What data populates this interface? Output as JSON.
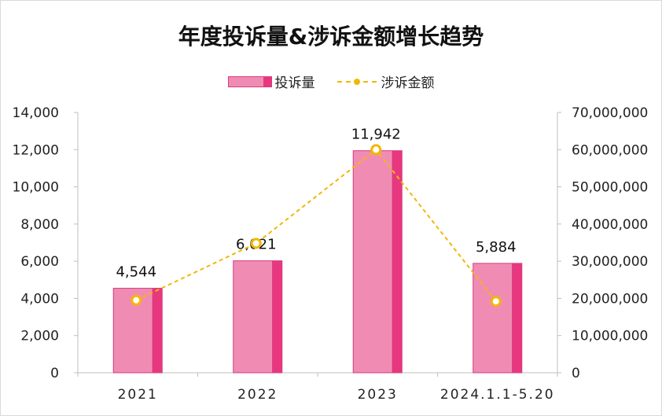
{
  "chart_data": {
    "type": "bar",
    "title": "年度投诉量&涉诉金额增长趋势",
    "categories": [
      "2021",
      "2022",
      "2023",
      "2024.1.1-5.20"
    ],
    "series": [
      {
        "name": "投诉量",
        "type": "bar",
        "axis": "left",
        "color": "#f08cb4",
        "side_color": "#e8377f",
        "values": [
          4544,
          6021,
          11942,
          5884
        ],
        "labels": [
          "4,544",
          "6,021",
          "11,942",
          "5,884"
        ]
      },
      {
        "name": "涉诉金额",
        "type": "line",
        "axis": "right",
        "style": "dashed",
        "color": "#f2b705",
        "values": [
          19500000,
          34800000,
          60000000,
          19200000
        ]
      }
    ],
    "y_left": {
      "lim": [
        0,
        14000
      ],
      "ticks": [
        0,
        2000,
        4000,
        6000,
        8000,
        10000,
        12000,
        14000
      ],
      "tick_labels": [
        "0",
        "2,000",
        "4,000",
        "6,000",
        "8,000",
        "10,000",
        "12,000",
        "14,000"
      ]
    },
    "y_right": {
      "lim": [
        0,
        70000000
      ],
      "ticks": [
        0,
        10000000,
        20000000,
        30000000,
        40000000,
        50000000,
        60000000,
        70000000
      ],
      "tick_labels": [
        "0",
        "10,000,000",
        "20,000,000",
        "30,000,000",
        "40,000,000",
        "50,000,000",
        "60,000,000",
        "70,000,000"
      ]
    },
    "grid": false,
    "legend": "top-center"
  }
}
